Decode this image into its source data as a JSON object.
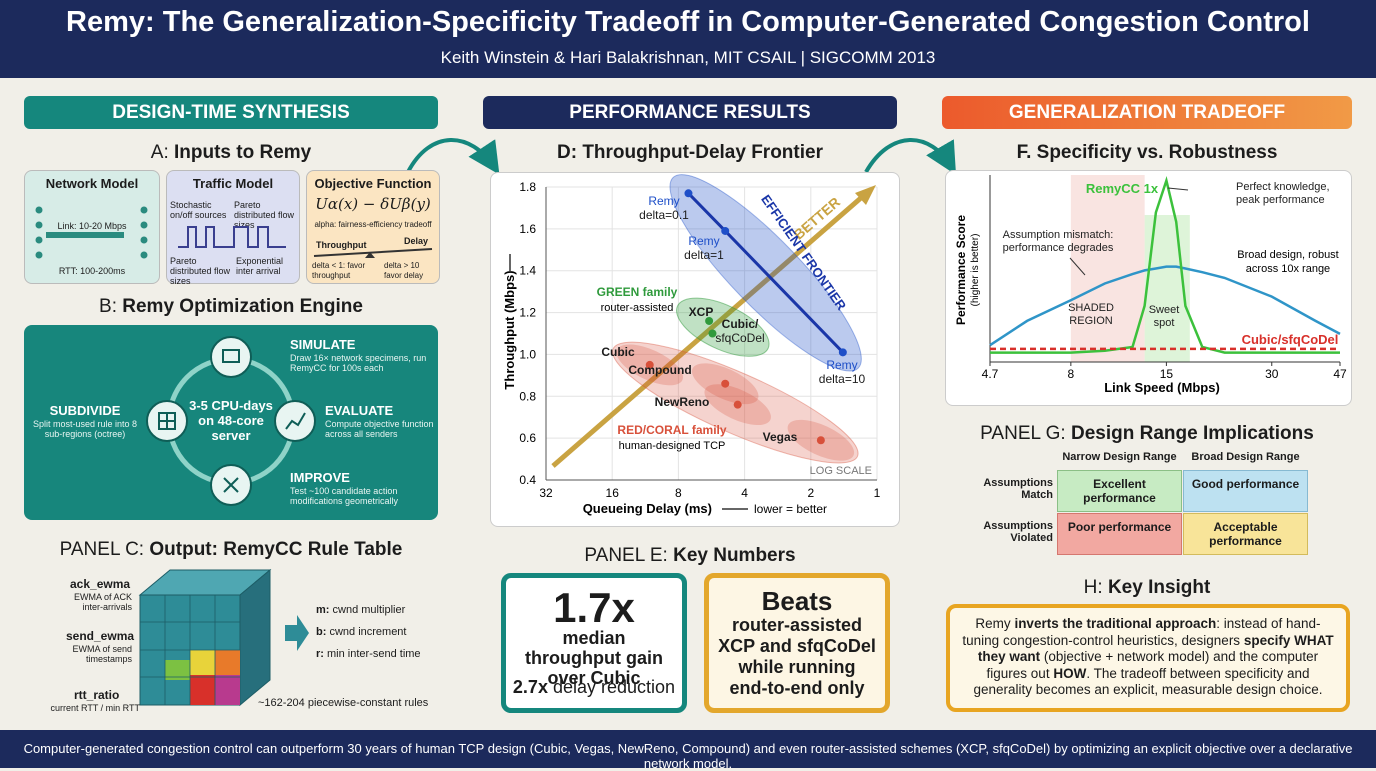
{
  "header": {
    "title": "Remy: The Generalization-Specificity Tradeoff in Computer-Generated Congestion Control",
    "subtitle": "Keith Winstein & Hari Balakrishnan, MIT CSAIL | SIGCOMM 2013"
  },
  "columns": [
    {
      "heading": "DESIGN-TIME SYNTHESIS"
    },
    {
      "heading": "PERFORMANCE RESULTS"
    },
    {
      "heading": "GENERALIZATION TRADEOFF"
    }
  ],
  "panel_a": {
    "label": "A:",
    "title": "Inputs to Remy",
    "cards": [
      {
        "title": "Network Model",
        "notes": [
          "Link: 10-20 Mbps",
          "RTT: 100-200ms"
        ]
      },
      {
        "title": "Traffic Model",
        "notes": [
          "Stochastic on/off sources",
          "Pareto distributed flow sizes",
          "Pareto distributed flow sizes",
          "Exponential inter arrival"
        ]
      },
      {
        "title": "Objective Function",
        "notes": [
          "Uα(x) − δUβ(y)",
          "alpha: fairness-efficiency tradeoff",
          "Throughput",
          "Delay",
          "delta < 1: favor throughput",
          "delta > 10 favor delay"
        ]
      }
    ]
  },
  "panel_b": {
    "label": "B:",
    "title": "Remy Optimization Engine",
    "center": "3-5 CPU-days on 48-core server",
    "steps": [
      {
        "title": "SIMULATE",
        "text": "Draw 16× network specimens, run RemyCC for 100s each"
      },
      {
        "title": "EVALUATE",
        "text": "Compute objective function across all senders"
      },
      {
        "title": "IMPROVE",
        "text": "Test ~100 candidate action modifications geometrically"
      },
      {
        "title": "SUBDIVIDE",
        "text": "Split most-used rule into 8 sub-regions (octree)"
      }
    ]
  },
  "panel_c": {
    "label": "PANEL C:",
    "title": "Output: RemyCC Rule Table",
    "inputs": [
      {
        "name": "ack_ewma",
        "text": "EWMA of ACK inter-arrivals"
      },
      {
        "name": "send_ewma",
        "text": "EWMA of send timestamps"
      },
      {
        "name": "rtt_ratio",
        "text": "current RTT / min RTT"
      }
    ],
    "outputs": [
      {
        "name": "m:",
        "text": "cwnd multiplier"
      },
      {
        "name": "b:",
        "text": "cwnd increment"
      },
      {
        "name": "r:",
        "text": "min inter-send time"
      }
    ],
    "note": "~162-204 piecewise-constant rules"
  },
  "chart_data": [
    {
      "type": "scatter",
      "title": "D: Throughput-Delay Frontier",
      "x_label": "Queueing Delay (ms)",
      "x_note": "lower = better",
      "y_label": "Throughput (Mbps)",
      "log_x": true,
      "grid": true,
      "scale_note": "LOG SCALE",
      "xlim": [
        32,
        1
      ],
      "xticks": [
        32,
        16,
        8,
        4,
        2,
        1
      ],
      "ylim": [
        0.4,
        1.8
      ],
      "yticks": [
        1.8,
        1.6,
        1.4,
        1.2,
        {
          "value": 1,
          "label": "1.0"
        },
        0.8,
        0.6,
        0.4
      ],
      "annotations": [
        "EFFICIENT FRONTIER",
        "BETTER"
      ],
      "series": [
        {
          "name": "Remy",
          "color": "#1e4fc8",
          "labels": [
            [
              "Remy",
              "delta=0.1"
            ],
            [
              "Remy",
              "delta=1"
            ],
            [
              "Remy",
              "delta=10"
            ]
          ],
          "x": [
            7.2,
            4.9,
            1.43
          ],
          "values": [
            1.77,
            1.59,
            1.01
          ]
        },
        {
          "name": "GREEN family",
          "note": "router-assisted",
          "color": "#2f9a3c",
          "labels": [
            [
              "XCP"
            ],
            [
              "Cubic/",
              "sfqCoDel"
            ]
          ],
          "x": [
            5.8,
            5.6
          ],
          "values": [
            1.16,
            1.1
          ]
        },
        {
          "name": "RED/CORAL family",
          "note": "human-designed TCP",
          "color": "#d8503a",
          "labels": [
            [
              "Cubic"
            ],
            [
              "Compound"
            ],
            [
              "NewReno"
            ],
            [
              "Vegas"
            ]
          ],
          "x": [
            10.8,
            4.9,
            4.3,
            1.8
          ],
          "values": [
            0.95,
            0.86,
            0.76,
            0.59
          ]
        }
      ]
    },
    {
      "type": "line",
      "title": "F. Specificity vs. Robustness",
      "x_label": "Link Speed (Mbps)",
      "y_label": "Performance Score",
      "y_sublabel": "(higher is better)",
      "log_x": true,
      "xlim": [
        4.7,
        47
      ],
      "xticks": [
        4.7,
        8,
        15,
        30,
        47
      ],
      "ylim": [
        0,
        1
      ],
      "x": [
        4.7,
        6,
        8,
        10,
        12,
        13,
        14,
        15,
        16,
        17,
        19,
        22,
        30,
        40,
        47
      ],
      "series": [
        {
          "name_lines": [
            "Broad design, robust",
            "across 10x range"
          ],
          "color": "#2f95c8",
          "values": [
            0.09,
            0.22,
            0.33,
            0.42,
            0.47,
            0.49,
            0.5,
            0.51,
            0.51,
            0.5,
            0.48,
            0.45,
            0.35,
            0.22,
            0.15
          ]
        },
        {
          "name": "RemyCC 1x",
          "color": "#3cc13c",
          "values": [
            0.05,
            0.05,
            0.05,
            0.06,
            0.08,
            0.3,
            0.8,
            0.97,
            0.75,
            0.3,
            0.08,
            0.05,
            0.05,
            0.05,
            0.05
          ]
        },
        {
          "name": "Cubic/sfqCoDel",
          "color": "#d8302a",
          "dashed": true,
          "values": [
            0.07,
            0.07,
            0.07,
            0.07,
            0.07,
            0.07,
            0.07,
            0.07,
            0.07,
            0.07,
            0.07,
            0.07,
            0.07,
            0.07,
            0.07
          ]
        }
      ],
      "annotations": [
        {
          "lines": [
            "Perfect knowledge,",
            "peak performance"
          ]
        },
        {
          "lines": [
            "Assumption mismatch:",
            "performance degrades"
          ]
        },
        {
          "lines": [
            "SHADED",
            "REGION"
          ]
        },
        {
          "lines": [
            "Sweet",
            "spot"
          ]
        }
      ]
    }
  ],
  "panel_e": {
    "label": "PANEL E:",
    "title": "Key Numbers",
    "cards": [
      {
        "big": "1.7x",
        "text": "median throughput gain over Cubic",
        "sub_bold": "2.7x",
        "sub": "delay reduction"
      },
      {
        "big": "Beats",
        "text": "router-assisted XCP and sfqCoDel while running end-to-end only"
      }
    ]
  },
  "panel_g": {
    "label": "PANEL G:",
    "title": "Design Range Implications",
    "columns": [
      "Narrow Design Range",
      "Broad Design Range"
    ],
    "rows": [
      {
        "label": "Assumptions Match",
        "cells": [
          "Excellent performance",
          "Good performance"
        ]
      },
      {
        "label": "Assumptions Violated",
        "cells": [
          "Poor performance",
          "Acceptable performance"
        ]
      }
    ]
  },
  "panel_h": {
    "label": "H:",
    "title": "Key Insight",
    "segments": [
      {
        "text": "Remy ",
        "bold": false
      },
      {
        "text": "inverts the traditional approach",
        "bold": true
      },
      {
        "text": ": instead of hand-tuning congestion-control heuristics, designers ",
        "bold": false
      },
      {
        "text": "specify WHAT they want",
        "bold": true
      },
      {
        "text": " (objective + network model) and the computer figures out ",
        "bold": false
      },
      {
        "text": "HOW",
        "bold": true
      },
      {
        "text": ". The tradeoff between specificity and generality becomes an explicit, measurable design choice.",
        "bold": false
      }
    ]
  },
  "footer": "Computer-generated congestion control can outperform 30 years of human TCP design (Cubic, Vegas, NewReno, Compound) and even router-assisted schemes (XCP, sfqCoDel) by optimizing an explicit objective over a declarative network model."
}
